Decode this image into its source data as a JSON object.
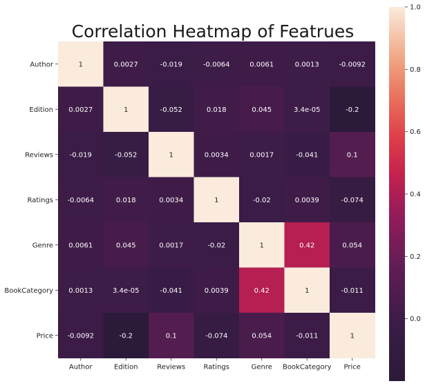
{
  "chart_data": {
    "type": "heatmap",
    "title": "Correlation Heatmap of Featrues",
    "xlabel": "",
    "ylabel": "",
    "x_categories": [
      "Author",
      "Edition",
      "Reviews",
      "Ratings",
      "Genre",
      "BookCategory",
      "Price"
    ],
    "y_categories": [
      "Author",
      "Edition",
      "Reviews",
      "Ratings",
      "Genre",
      "BookCategory",
      "Price"
    ],
    "values": [
      [
        1,
        0.0027,
        -0.019,
        -0.0064,
        0.0061,
        0.0013,
        -0.0092
      ],
      [
        0.0027,
        1,
        -0.052,
        0.018,
        0.045,
        3.4e-05,
        -0.2
      ],
      [
        -0.019,
        -0.052,
        1,
        0.0034,
        0.0017,
        -0.041,
        0.1
      ],
      [
        -0.0064,
        0.018,
        0.0034,
        1,
        -0.02,
        0.0039,
        -0.074
      ],
      [
        0.0061,
        0.045,
        0.0017,
        -0.02,
        1,
        0.42,
        0.054
      ],
      [
        0.0013,
        3.4e-05,
        -0.041,
        0.0039,
        0.42,
        1,
        -0.011
      ],
      [
        -0.0092,
        -0.2,
        0.1,
        -0.074,
        0.054,
        -0.011,
        1
      ]
    ],
    "annotations": [
      [
        "1",
        "0.0027",
        "-0.019",
        "-0.0064",
        "0.0061",
        "0.0013",
        "-0.0092"
      ],
      [
        "0.0027",
        "1",
        "-0.052",
        "0.018",
        "0.045",
        "3.4e-05",
        "-0.2"
      ],
      [
        "-0.019",
        "-0.052",
        "1",
        "0.0034",
        "0.0017",
        "-0.041",
        "0.1"
      ],
      [
        "-0.0064",
        "0.018",
        "0.0034",
        "1",
        "-0.02",
        "0.0039",
        "-0.074"
      ],
      [
        "0.0061",
        "0.045",
        "0.0017",
        "-0.02",
        "1",
        "0.42",
        "0.054"
      ],
      [
        "0.0013",
        "3.4e-05",
        "-0.041",
        "0.0039",
        "0.42",
        "1",
        "-0.011"
      ],
      [
        "-0.0092",
        "-0.2",
        "0.1",
        "-0.074",
        "0.054",
        "-0.011",
        "1"
      ]
    ],
    "colorbar": {
      "vmin": -0.2,
      "vmax": 1,
      "ticks": [
        0.0,
        0.2,
        0.4,
        0.6,
        0.8,
        1.0
      ],
      "tick_labels": [
        "0.0",
        "0.2",
        "0.4",
        "0.6",
        "0.8",
        "1.0"
      ],
      "colormap": "rocket",
      "placement": "right"
    },
    "grid": false,
    "legend": "none"
  }
}
